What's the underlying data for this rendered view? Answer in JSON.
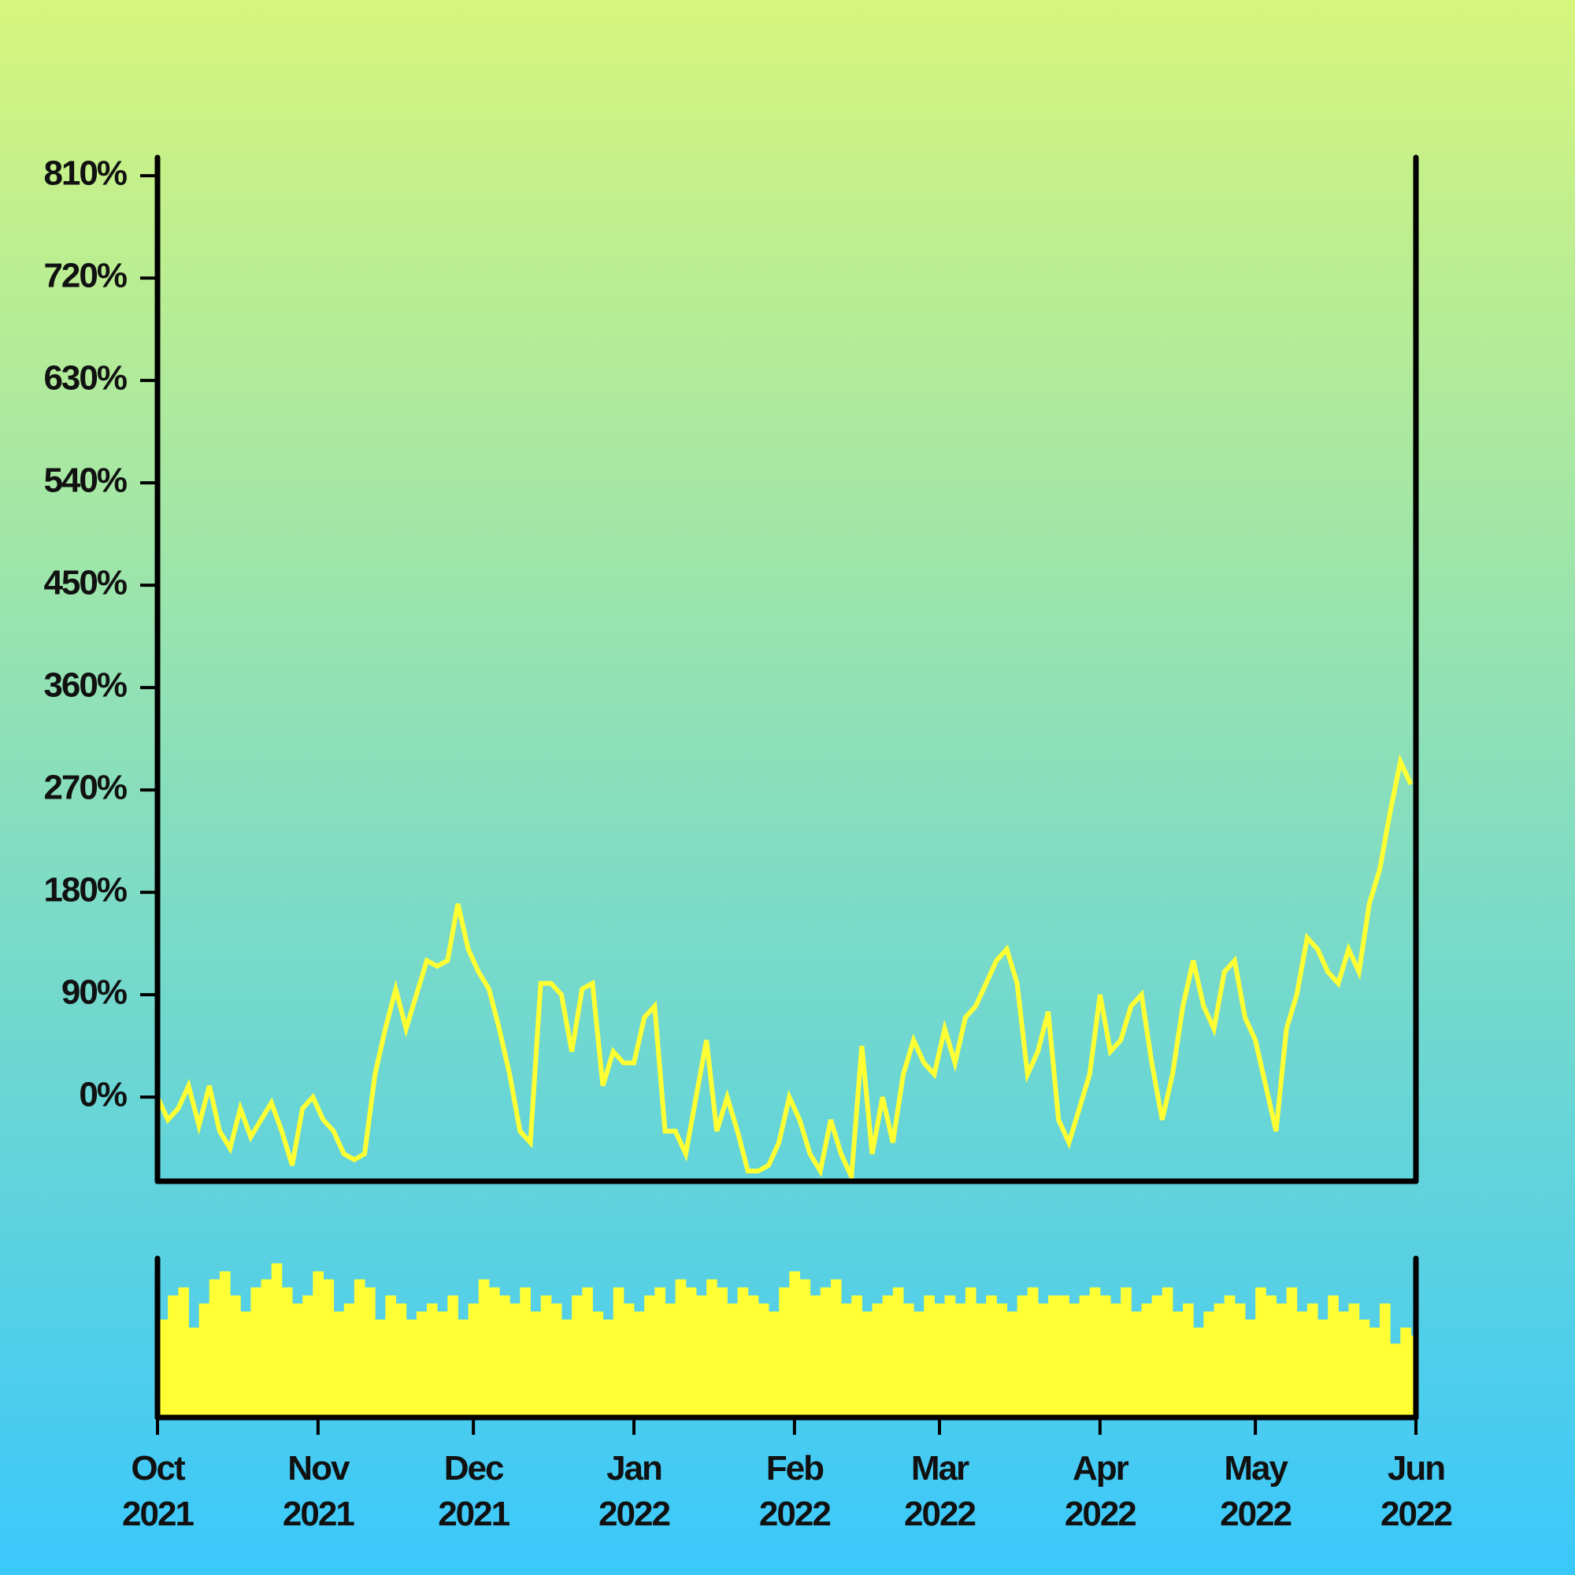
{
  "chart_data": [
    {
      "type": "line",
      "color": "#ffff33",
      "x": [
        0,
        2,
        4,
        6,
        8,
        10,
        12,
        14,
        16,
        18,
        20,
        22,
        24,
        26,
        28,
        30,
        32,
        34,
        36,
        38,
        40,
        42,
        44,
        46,
        48,
        50,
        52,
        54,
        56,
        58,
        60,
        62,
        64,
        66,
        68,
        70,
        72,
        74,
        76,
        78,
        80,
        82,
        84,
        86,
        88,
        90,
        92,
        94,
        96,
        98,
        100,
        102,
        104,
        106,
        108,
        110,
        112,
        114,
        116,
        118,
        120,
        122,
        124,
        126,
        128,
        130,
        132,
        134,
        136,
        138,
        140,
        142,
        144,
        146,
        148,
        150,
        152,
        154,
        156,
        158,
        160,
        162,
        164,
        166,
        168,
        170,
        172,
        174,
        176,
        178,
        180,
        182,
        184,
        186,
        188,
        190,
        192,
        194,
        196,
        198,
        200,
        202,
        204,
        206,
        208,
        210,
        212,
        214,
        216,
        218,
        220,
        222,
        224,
        226,
        228,
        230,
        232,
        234,
        236,
        238,
        240,
        242
      ],
      "values": [
        0,
        -20,
        -10,
        10,
        -25,
        10,
        -30,
        -45,
        -10,
        -35,
        -20,
        -5,
        -30,
        -60,
        -10,
        0,
        -20,
        -30,
        -50,
        -55,
        -50,
        20,
        60,
        95,
        60,
        90,
        120,
        115,
        120,
        170,
        130,
        110,
        95,
        60,
        20,
        -30,
        -40,
        100,
        100,
        90,
        40,
        95,
        100,
        10,
        40,
        30,
        30,
        70,
        80,
        -30,
        -30,
        -50,
        0,
        50,
        -30,
        0,
        -30,
        -65,
        -65,
        -60,
        -40,
        0,
        -20,
        -50,
        -65,
        -20,
        -50,
        -70,
        45,
        -50,
        0,
        -40,
        20,
        50,
        30,
        20,
        60,
        30,
        70,
        80,
        100,
        120,
        130,
        100,
        20,
        40,
        75,
        -20,
        -40,
        -10,
        20,
        90,
        40,
        50,
        80,
        90,
        30,
        -20,
        20,
        80,
        120,
        80,
        60,
        110,
        120,
        70,
        50,
        10,
        -30,
        60,
        90,
        140,
        130,
        110,
        100,
        130,
        110,
        170,
        200,
        250,
        295,
        275
      ],
      "xlim": [
        0,
        243
      ],
      "ylim": [
        -74,
        826
      ],
      "yticks": [
        {
          "value": 0,
          "label": "0%"
        },
        {
          "value": 90,
          "label": "90%"
        },
        {
          "value": 180,
          "label": "180%"
        },
        {
          "value": 270,
          "label": "270%"
        },
        {
          "value": 360,
          "label": "360%"
        },
        {
          "value": 450,
          "label": "450%"
        },
        {
          "value": 540,
          "label": "540%"
        },
        {
          "value": 630,
          "label": "630%"
        },
        {
          "value": 720,
          "label": "720%"
        },
        {
          "value": 810,
          "label": "810%"
        }
      ]
    },
    {
      "type": "bar",
      "color": "#ffff33",
      "x": [
        0,
        2,
        4,
        6,
        8,
        10,
        12,
        14,
        16,
        18,
        20,
        22,
        24,
        26,
        28,
        30,
        32,
        34,
        36,
        38,
        40,
        42,
        44,
        46,
        48,
        50,
        52,
        54,
        56,
        58,
        60,
        62,
        64,
        66,
        68,
        70,
        72,
        74,
        76,
        78,
        80,
        82,
        84,
        86,
        88,
        90,
        92,
        94,
        96,
        98,
        100,
        102,
        104,
        106,
        108,
        110,
        112,
        114,
        116,
        118,
        120,
        122,
        124,
        126,
        128,
        130,
        132,
        134,
        136,
        138,
        140,
        142,
        144,
        146,
        148,
        150,
        152,
        154,
        156,
        158,
        160,
        162,
        164,
        166,
        168,
        170,
        172,
        174,
        176,
        178,
        180,
        182,
        184,
        186,
        188,
        190,
        192,
        194,
        196,
        198,
        200,
        202,
        204,
        206,
        208,
        210,
        212,
        214,
        216,
        218,
        220,
        222,
        224,
        226,
        228,
        230,
        232,
        234,
        236,
        238,
        240,
        242
      ],
      "values": [
        60,
        75,
        80,
        55,
        70,
        85,
        90,
        75,
        65,
        80,
        85,
        95,
        80,
        70,
        75,
        90,
        85,
        65,
        70,
        85,
        80,
        60,
        75,
        70,
        60,
        65,
        70,
        65,
        75,
        60,
        70,
        85,
        80,
        75,
        70,
        80,
        65,
        75,
        70,
        60,
        75,
        80,
        65,
        60,
        80,
        70,
        65,
        75,
        80,
        70,
        85,
        80,
        75,
        85,
        80,
        70,
        80,
        75,
        70,
        65,
        80,
        90,
        85,
        75,
        80,
        85,
        70,
        75,
        65,
        70,
        75,
        80,
        70,
        65,
        75,
        70,
        75,
        70,
        80,
        70,
        75,
        70,
        65,
        75,
        80,
        70,
        75,
        75,
        70,
        75,
        80,
        75,
        70,
        80,
        65,
        70,
        75,
        80,
        65,
        70,
        55,
        65,
        70,
        75,
        70,
        60,
        80,
        75,
        70,
        80,
        65,
        70,
        60,
        75,
        65,
        70,
        60,
        55,
        70,
        45,
        55,
        50
      ],
      "xlim": [
        0,
        243
      ],
      "ylim": [
        0,
        100
      ],
      "xticks": [
        {
          "value": 0,
          "label": "Oct 2021"
        },
        {
          "value": 31,
          "label": "Nov 2021"
        },
        {
          "value": 61,
          "label": "Dec 2021"
        },
        {
          "value": 92,
          "label": "Jan 2022"
        },
        {
          "value": 123,
          "label": "Feb 2022"
        },
        {
          "value": 151,
          "label": "Mar 2022"
        },
        {
          "value": 182,
          "label": "Apr 2022"
        },
        {
          "value": 212,
          "label": "May 2022"
        },
        {
          "value": 243,
          "label": "Jun 2022"
        }
      ]
    }
  ]
}
